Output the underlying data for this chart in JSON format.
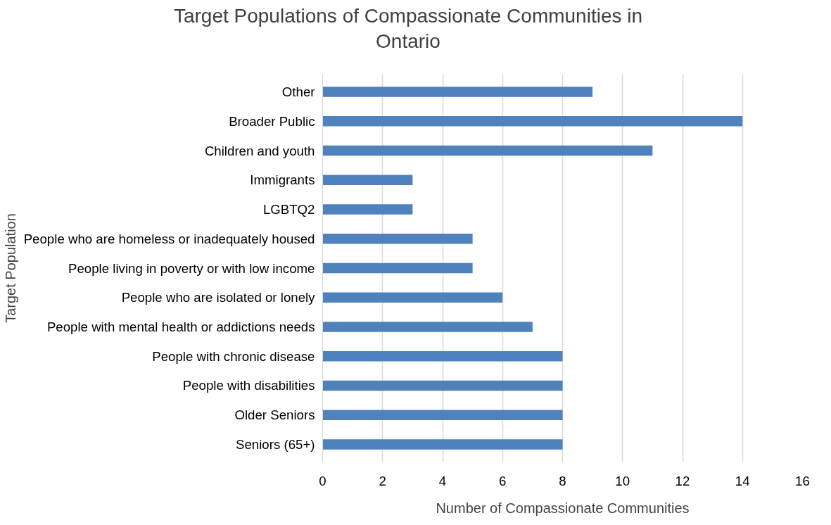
{
  "chart_data": {
    "type": "bar",
    "orientation": "horizontal",
    "title": "Target Populations of Compassionate Communities in Ontario",
    "xlabel": "Number of Compassionate Communities",
    "ylabel": "Target Population",
    "categories": [
      "Other",
      "Broader Public",
      "Children and youth",
      "Immigrants",
      "LGBTQ2",
      "People who are homeless or inadequately housed",
      "People living in poverty or with low income",
      "People who are isolated or lonely",
      "People with mental health or addictions needs",
      "People with chronic disease",
      "People with disabilities",
      "Older Seniors",
      "Seniors (65+)"
    ],
    "values": [
      9,
      14,
      11,
      3,
      3,
      5,
      5,
      6,
      7,
      8,
      8,
      8,
      8
    ],
    "color": "#4f81bd",
    "xlim": [
      0,
      16
    ],
    "xticks": [
      0,
      2,
      4,
      6,
      8,
      10,
      12,
      14,
      16
    ],
    "grid": "x"
  }
}
